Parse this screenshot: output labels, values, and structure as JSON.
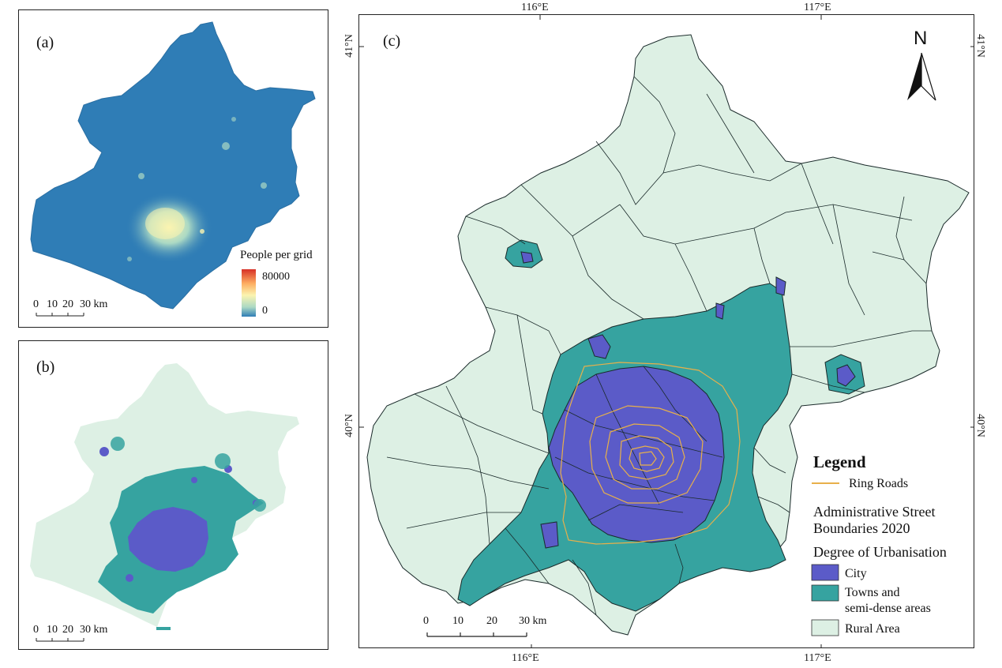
{
  "panel_a": {
    "label": "(a)",
    "legend_title": "People per grid",
    "legend_max": "80000",
    "legend_min": "0",
    "scale": {
      "ticks": [
        "0",
        "10",
        "20",
        "30 km"
      ]
    },
    "colors": {
      "base": "#2f7db6",
      "low": "#3a8cc0",
      "mid": "#abd9c4",
      "high": "#fbf4b0",
      "peak": "#d73027"
    }
  },
  "panel_b": {
    "label": "(b)",
    "scale": {
      "ticks": [
        "0",
        "10",
        "20",
        "30 km"
      ]
    },
    "colors": {
      "city": "#5b5bc8",
      "town": "#36a3a0",
      "rural": "#ddf0e4"
    }
  },
  "panel_c": {
    "label": "(c)",
    "north": "N",
    "coords": {
      "top": [
        "116°E",
        "117°E"
      ],
      "bottom": [
        "116°E",
        "117°E"
      ],
      "left": [
        "41°N",
        "40°N"
      ],
      "right": [
        "41°N",
        "40°N"
      ]
    },
    "scale": {
      "ticks": [
        "0",
        "10",
        "20",
        "30 km"
      ]
    },
    "legend": {
      "title": "Legend",
      "ring_roads": "Ring Roads",
      "boundaries_line1": "Administrative Street",
      "boundaries_line2": "Boundaries 2020",
      "degree_title": "Degree of Urbanisation",
      "city": "City",
      "towns_line1": "Towns and",
      "towns_line2": "semi-dense areas",
      "rural": "Rural Area"
    },
    "colors": {
      "city": "#5b5bc8",
      "town": "#36a3a0",
      "rural": "#ddf0e4",
      "ring": "#e8b04a",
      "border": "#1a2a2a"
    }
  }
}
